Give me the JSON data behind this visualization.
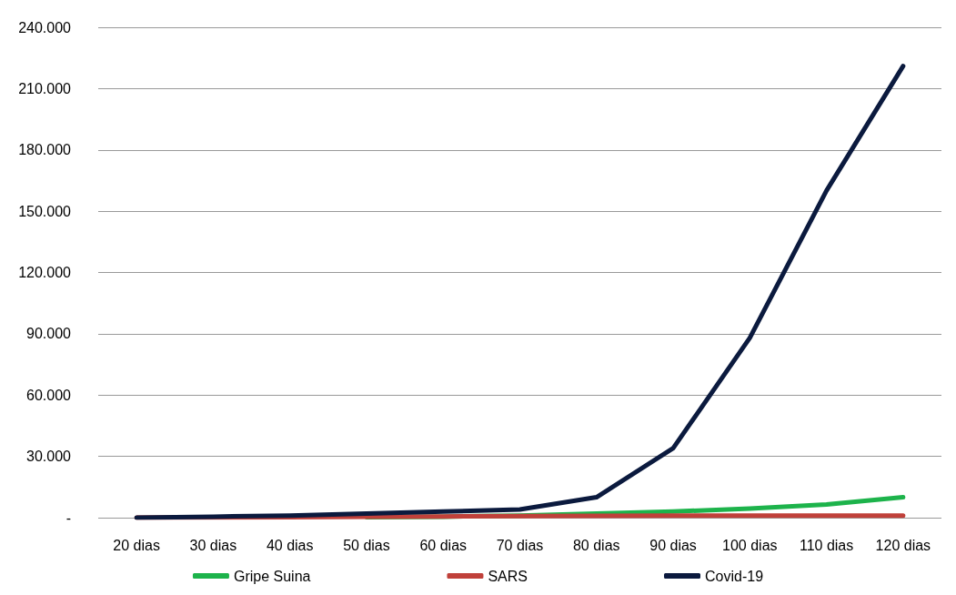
{
  "chart_data": {
    "type": "line",
    "categories": [
      "20 dias",
      "30 dias",
      "40 dias",
      "50 dias",
      "60 dias",
      "70 dias",
      "80 dias",
      "90 dias",
      "100 dias",
      "110 dias",
      "120 dias"
    ],
    "series": [
      {
        "name": "Gripe Suina",
        "color": "#1db34b",
        "values": [
          null,
          null,
          null,
          200,
          500,
          1000,
          2000,
          3000,
          4500,
          6500,
          10000
        ]
      },
      {
        "name": "SARS",
        "color": "#c0403a",
        "values": [
          0,
          100,
          200,
          400,
          600,
          800,
          900,
          1000,
          1000,
          1000,
          1000
        ]
      },
      {
        "name": "Covid-19",
        "color": "#0b1a3e",
        "values": [
          0,
          500,
          1000,
          2000,
          3000,
          4000,
          10000,
          34000,
          88000,
          160000,
          221000
        ]
      }
    ],
    "ylim": [
      0,
      240000
    ],
    "yticks": [
      {
        "value": 0,
        "label": "-"
      },
      {
        "value": 30000,
        "label": "30.000"
      },
      {
        "value": 60000,
        "label": "60.000"
      },
      {
        "value": 90000,
        "label": "90.000"
      },
      {
        "value": 120000,
        "label": "120.000"
      },
      {
        "value": 150000,
        "label": "150.000"
      },
      {
        "value": 180000,
        "label": "180.000"
      },
      {
        "value": 210000,
        "label": "210.000"
      },
      {
        "value": 240000,
        "label": "240.000"
      }
    ],
    "grid": "y",
    "legend": "bottom",
    "marker": "none",
    "line_style": "solid"
  }
}
